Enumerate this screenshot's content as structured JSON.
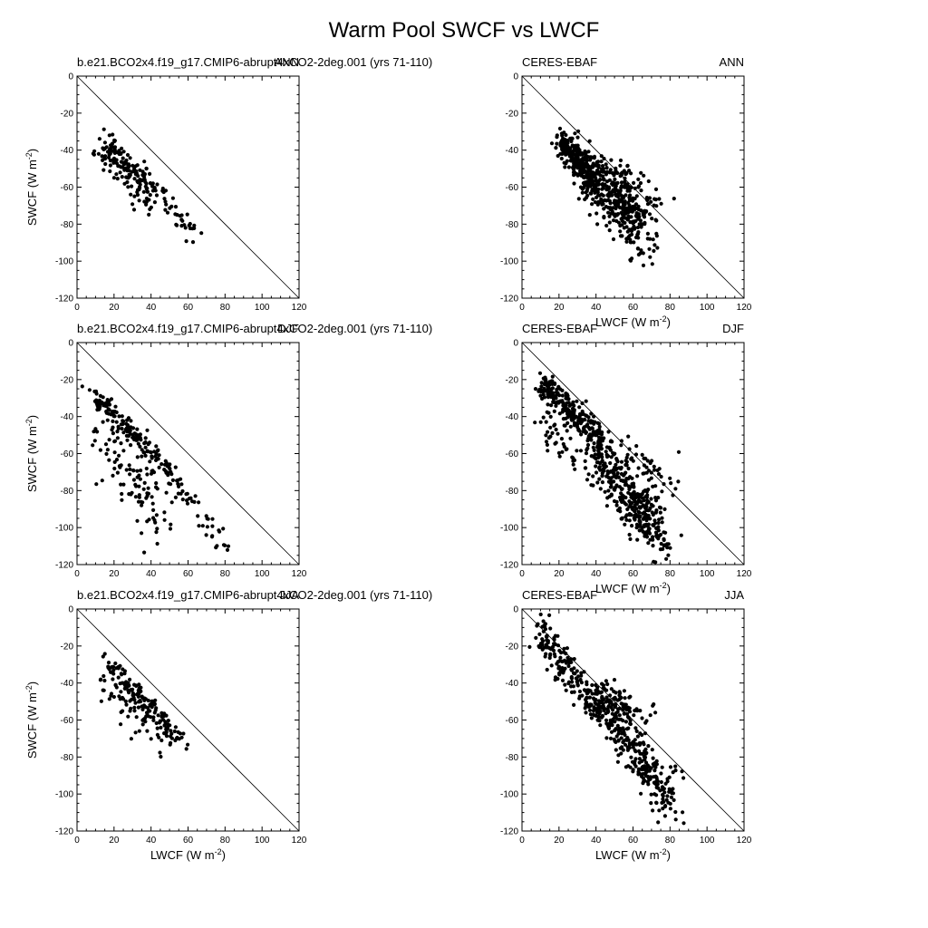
{
  "figure": {
    "title": "Warm Pool SWCF vs LWCF"
  },
  "chart_data": [
    {
      "type": "scatter",
      "panel": "model-ann",
      "left_label": "b.e21.BCO2x4.f19_g17.CMIP6-abrupt4xCO2-2deg.001 (yrs 71-110)",
      "right_label": "ANN",
      "xlabel": "",
      "ylabel": "SWCF (W m-2)",
      "xlim": [
        0,
        120
      ],
      "ylim": [
        -120,
        0
      ],
      "xticks": [
        "0",
        "20",
        "40",
        "60",
        "80",
        "100",
        "120"
      ],
      "yticks": [
        "0",
        "-20",
        "-40",
        "-60",
        "-80",
        "-100",
        "-120"
      ],
      "reference_line": [
        [
          0,
          0
        ],
        [
          120,
          -120
        ]
      ],
      "clusters": [
        {
          "x": [
            12,
            42
          ],
          "y": [
            -32,
            -62
          ],
          "spread": 3,
          "n": 100,
          "seed": 11
        },
        {
          "x": [
            14,
            40
          ],
          "y": [
            -40,
            -68
          ],
          "spread": 5,
          "n": 70,
          "seed": 12
        },
        {
          "x": [
            42,
            64
          ],
          "y": [
            -62,
            -88
          ],
          "spread": 3,
          "n": 35,
          "seed": 13
        }
      ]
    },
    {
      "type": "scatter",
      "panel": "obs-ann",
      "left_label": "CERES-EBAF",
      "right_label": "ANN",
      "xlabel": "LWCF (W m-2)",
      "ylabel": "",
      "xlim": [
        0,
        120
      ],
      "ylim": [
        -120,
        0
      ],
      "xticks": [
        "0",
        "20",
        "40",
        "60",
        "80",
        "100",
        "120"
      ],
      "yticks": [
        "0",
        "-20",
        "-40",
        "-60",
        "-80",
        "-100",
        "-120"
      ],
      "reference_line": [
        [
          0,
          0
        ],
        [
          120,
          -120
        ]
      ],
      "clusters": [
        {
          "x": [
            21,
            40
          ],
          "y": [
            -35,
            -55
          ],
          "spread": 4,
          "n": 250,
          "seed": 21
        },
        {
          "x": [
            34,
            62
          ],
          "y": [
            -52,
            -75
          ],
          "spread": 7,
          "n": 280,
          "seed": 22
        },
        {
          "x": [
            50,
            70
          ],
          "y": [
            -70,
            -95
          ],
          "spread": 7,
          "n": 90,
          "seed": 23
        },
        {
          "x": [
            50,
            72
          ],
          "y": [
            -50,
            -72
          ],
          "spread": 6,
          "n": 50,
          "seed": 24
        }
      ]
    },
    {
      "type": "scatter",
      "panel": "model-djf",
      "left_label": "b.e21.BCO2x4.f19_g17.CMIP6-abrupt4xCO2-2deg.001 (yrs 71-110)",
      "right_label": "DJF",
      "xlabel": "",
      "ylabel": "SWCF (W m-2)",
      "xlim": [
        0,
        120
      ],
      "ylim": [
        -120,
        0
      ],
      "xticks": [
        "0",
        "20",
        "40",
        "60",
        "80",
        "100",
        "120"
      ],
      "yticks": [
        "0",
        "-20",
        "-40",
        "-60",
        "-80",
        "-100",
        "-120"
      ],
      "reference_line": [
        [
          0,
          0
        ],
        [
          120,
          -120
        ]
      ],
      "clusters": [
        {
          "x": [
            7,
            50
          ],
          "y": [
            -25,
            -70
          ],
          "spread": 2.5,
          "n": 120,
          "seed": 31
        },
        {
          "x": [
            50,
            80
          ],
          "y": [
            -70,
            -110
          ],
          "spread": 3,
          "n": 45,
          "seed": 32
        },
        {
          "x": [
            8,
            45
          ],
          "y": [
            -35,
            -95
          ],
          "spread": 9,
          "n": 130,
          "seed": 33
        }
      ]
    },
    {
      "type": "scatter",
      "panel": "obs-djf",
      "left_label": "CERES-EBAF",
      "right_label": "DJF",
      "xlabel": "LWCF (W m-2)",
      "ylabel": "",
      "xlim": [
        0,
        120
      ],
      "ylim": [
        -120,
        0
      ],
      "xticks": [
        "0",
        "20",
        "40",
        "60",
        "80",
        "100",
        "120"
      ],
      "yticks": [
        "0",
        "-20",
        "-40",
        "-60",
        "-80",
        "-100",
        "-120"
      ],
      "reference_line": [
        [
          0,
          0
        ],
        [
          120,
          -120
        ]
      ],
      "clusters": [
        {
          "x": [
            10,
            45
          ],
          "y": [
            -22,
            -55
          ],
          "spread": 4,
          "n": 250,
          "seed": 41
        },
        {
          "x": [
            38,
            72
          ],
          "y": [
            -58,
            -100
          ],
          "spread": 7,
          "n": 300,
          "seed": 42
        },
        {
          "x": [
            62,
            80
          ],
          "y": [
            -90,
            -115
          ],
          "spread": 5,
          "n": 60,
          "seed": 43
        },
        {
          "x": [
            55,
            82
          ],
          "y": [
            -60,
            -80
          ],
          "spread": 6,
          "n": 50,
          "seed": 44
        },
        {
          "x": [
            12,
            30
          ],
          "y": [
            -45,
            -65
          ],
          "spread": 5,
          "n": 40,
          "seed": 45
        }
      ]
    },
    {
      "type": "scatter",
      "panel": "model-jja",
      "left_label": "b.e21.BCO2x4.f19_g17.CMIP6-abrupt4xCO2-2deg.001 (yrs 71-110)",
      "right_label": "JJA",
      "xlabel": "LWCF (W m-2)",
      "ylabel": "SWCF (W m-2)",
      "xlim": [
        0,
        120
      ],
      "ylim": [
        -120,
        0
      ],
      "xticks": [
        "0",
        "20",
        "40",
        "60",
        "80",
        "100",
        "120"
      ],
      "yticks": [
        "0",
        "-20",
        "-40",
        "-60",
        "-80",
        "-100",
        "-120"
      ],
      "reference_line": [
        [
          0,
          0
        ],
        [
          120,
          -120
        ]
      ],
      "clusters": [
        {
          "x": [
            15,
            57
          ],
          "y": [
            -27,
            -72
          ],
          "spread": 2.5,
          "n": 130,
          "seed": 51
        },
        {
          "x": [
            15,
            50
          ],
          "y": [
            -42,
            -72
          ],
          "spread": 5,
          "n": 70,
          "seed": 52
        }
      ]
    },
    {
      "type": "scatter",
      "panel": "obs-jja",
      "left_label": "CERES-EBAF",
      "right_label": "JJA",
      "xlabel": "LWCF (W m-2)",
      "ylabel": "",
      "xlim": [
        0,
        120
      ],
      "ylim": [
        -120,
        0
      ],
      "xticks": [
        "0",
        "20",
        "40",
        "60",
        "80",
        "100",
        "120"
      ],
      "yticks": [
        "0",
        "-20",
        "-40",
        "-60",
        "-80",
        "-100",
        "-120"
      ],
      "reference_line": [
        [
          0,
          0
        ],
        [
          120,
          -120
        ]
      ],
      "clusters": [
        {
          "x": [
            10,
            40
          ],
          "y": [
            -12,
            -55
          ],
          "spread": 5,
          "n": 170,
          "seed": 61
        },
        {
          "x": [
            40,
            82
          ],
          "y": [
            -50,
            -105
          ],
          "spread": 6,
          "n": 280,
          "seed": 62
        },
        {
          "x": [
            38,
            68
          ],
          "y": [
            -45,
            -60
          ],
          "spread": 5,
          "n": 90,
          "seed": 63
        }
      ]
    }
  ]
}
